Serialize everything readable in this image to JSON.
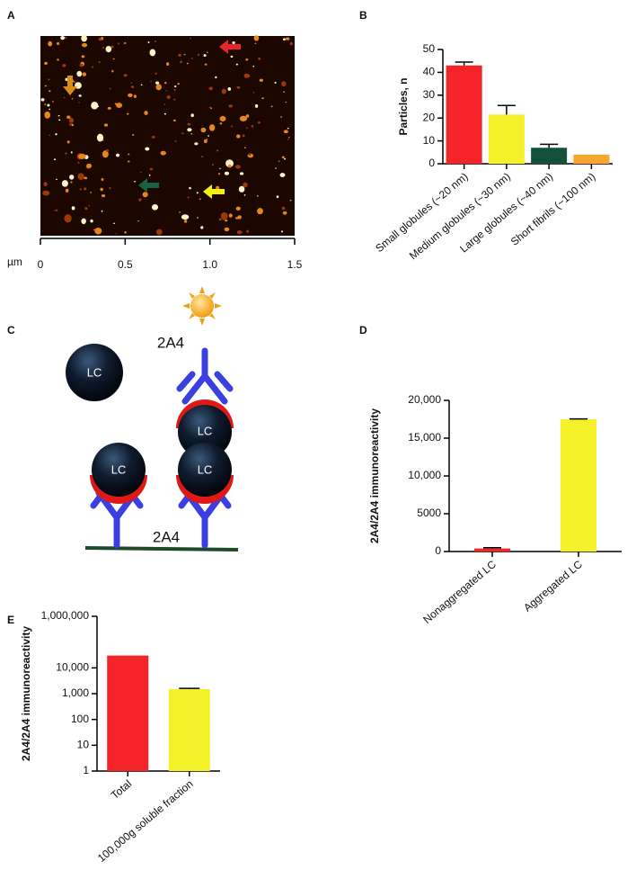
{
  "panel_labels": [
    "A",
    "B",
    "C",
    "D",
    "E"
  ],
  "diagram": {
    "labels": [
      "LC",
      "LC",
      "LC",
      "LC",
      "2A4",
      "2A4"
    ]
  },
  "chart_data": [
    {
      "type": "image",
      "xlabel": "µm",
      "xlim": [
        0,
        1.5
      ],
      "xticks": [
        0,
        0.5,
        {
          "value": 1,
          "label": "1.0"
        },
        1.5
      ]
    },
    {
      "type": "bar",
      "ylabel": "Particles, n",
      "categories": [
        "Small globules (~20 nm)",
        "Medium globules (~30 nm)",
        "Large globules (~40 nm)",
        "Short fibrils (~100 nm)"
      ],
      "values": [
        43,
        21.5,
        7,
        4
      ],
      "errors": [
        1.5,
        4,
        1.5,
        0
      ],
      "colors": [
        "#f42428",
        "#f4f02a",
        "#15503a",
        "#f6a631"
      ],
      "ylim": [
        0,
        50
      ],
      "yticks": [
        0,
        10,
        20,
        30,
        40,
        50
      ]
    },
    {
      "type": "bar",
      "ylabel": "2A4/2A4 immunoreactivity",
      "categories": [
        "Nonaggregated LC",
        "Aggregated LC"
      ],
      "values": [
        400,
        17500
      ],
      "errors": [
        100,
        50
      ],
      "colors": [
        "#f42428",
        "#f4f02a"
      ],
      "ylim": [
        0,
        20000
      ],
      "yticks": [
        0,
        5000,
        {
          "value": 10000,
          "label": "10,000"
        },
        {
          "value": 15000,
          "label": "15,000"
        },
        {
          "value": 20000,
          "label": "20,000"
        }
      ]
    },
    {
      "type": "bar",
      "log_scale": true,
      "ylabel": "2A4/2A4 immunoreactivity",
      "categories": [
        "Total",
        "100,000g soluble fraction"
      ],
      "values": [
        30000,
        1500
      ],
      "errors": [
        0,
        100
      ],
      "colors": [
        "#f42428",
        "#f4f02a"
      ],
      "ylim": [
        1,
        1000000
      ],
      "yticks": [
        1,
        10,
        100,
        {
          "value": 1000,
          "label": "1,000"
        },
        {
          "value": 10000,
          "label": "10,000"
        },
        {
          "value": 1000000,
          "label": "1,000,000"
        }
      ]
    }
  ]
}
